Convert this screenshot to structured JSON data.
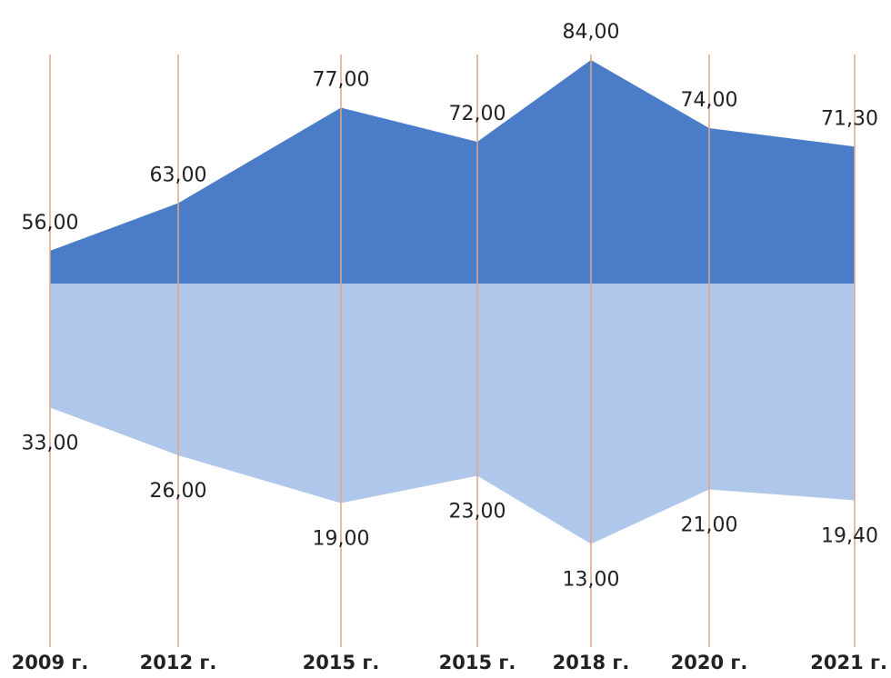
{
  "chart_data": {
    "type": "mirror-area",
    "categories": [
      "2009 г.",
      "2012 г.",
      "2015 г.",
      "2015 г.",
      "2018 г.",
      "2020 г.",
      "2021 г."
    ],
    "series": [
      {
        "color": "#4a7cc8",
        "values": [
          56,
          63,
          77,
          72,
          84,
          74,
          71.3
        ],
        "value_labels": [
          "56,00",
          "63,00",
          "77,00",
          "72,00",
          "84,00",
          "74,00",
          "71,30"
        ]
      },
      {
        "color": "#abc4ea",
        "values": [
          33,
          26,
          19,
          23,
          13,
          21,
          19.4
        ],
        "value_labels": [
          "33,00",
          "26,00",
          "19,00",
          "23,00",
          "13,00",
          "21,00",
          "19,40"
        ]
      }
    ],
    "ylim": [
      0,
      90
    ]
  }
}
